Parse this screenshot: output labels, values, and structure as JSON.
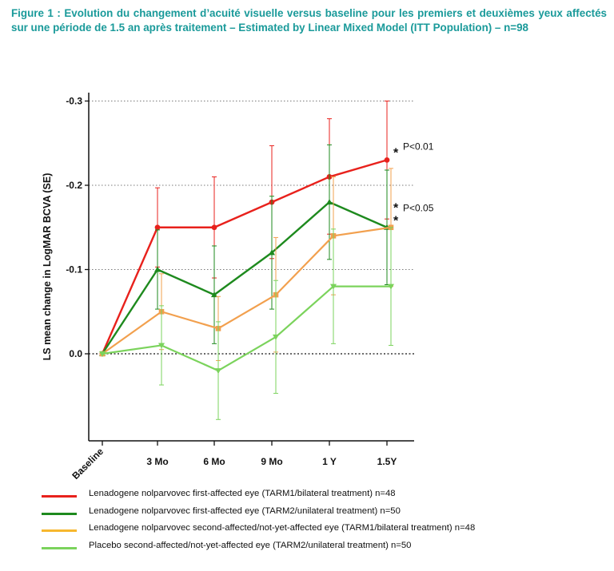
{
  "figure_title": "Figure 1 : Evolution du changement d’acuité visuelle versus baseline pour les premiers et deuxièmes yeux affectés sur une période de 1.5 an après traitement – Estimated by Linear Mixed Model (ITT Population) – n=98",
  "colors": {
    "title": "#1a9a9a",
    "red": "#e8211c",
    "dark_green": "#1e8a1e",
    "orange": "#f2a04e",
    "light_green": "#7bd35c"
  },
  "chart_data": {
    "type": "line",
    "title": "",
    "xlabel": "",
    "ylabel": "LS mean change in LogMAR BCVA (SE)",
    "categories": [
      "Baseline",
      "3 Mo",
      "6 Mo",
      "9 Mo",
      "1 Y",
      "1.5Y"
    ],
    "ylim": [
      0.1,
      -0.3
    ],
    "yaxis_inverted": true,
    "yticks": [
      "-0.3",
      "-0.2",
      "-0.1",
      "0.0"
    ],
    "grid": "horizontal dotted at tick values",
    "legend_position": "bottom",
    "series": [
      {
        "name": "Lenadogene nolparvovec first-affected eye (TARM1/bilateral treatment) n=48",
        "color": "#e8211c",
        "marker": "circle",
        "values": [
          0.0,
          -0.15,
          -0.15,
          -0.18,
          -0.21,
          -0.23
        ],
        "err_low": [
          0.0,
          -0.103,
          -0.09,
          -0.113,
          -0.142,
          -0.16
        ],
        "err_high": [
          0.0,
          -0.197,
          -0.21,
          -0.247,
          -0.279,
          -0.3
        ]
      },
      {
        "name": "Lenadogene nolparvovec first-affected eye (TARM2/unilateral treatment) n=50",
        "color": "#1e8a1e",
        "marker": "triangle-up",
        "values": [
          0.0,
          -0.1,
          -0.07,
          -0.12,
          -0.18,
          -0.15
        ],
        "err_low": [
          0.0,
          -0.053,
          -0.012,
          -0.053,
          -0.112,
          -0.082
        ],
        "err_high": [
          0.0,
          -0.147,
          -0.128,
          -0.187,
          -0.248,
          -0.218
        ]
      },
      {
        "name": "Lenadogene nolparvovec second-affected/not-yet-affected eye (TARM1/bilateral treatment) n=48",
        "color": "#f2a04e",
        "marker": "square",
        "values": [
          0.0,
          -0.05,
          -0.03,
          -0.07,
          -0.14,
          -0.15
        ],
        "err_low": [
          0.0,
          -0.005,
          0.008,
          -0.002,
          -0.07,
          -0.08
        ],
        "err_high": [
          0.0,
          -0.095,
          -0.068,
          -0.138,
          -0.21,
          -0.22
        ]
      },
      {
        "name": "Placebo second-affected/not-yet-affected eye (TARM2/unilateral treatment) n=50",
        "color": "#7bd35c",
        "marker": "triangle-down",
        "values": [
          0.0,
          -0.01,
          0.02,
          -0.02,
          -0.08,
          -0.08
        ],
        "err_low": [
          0.0,
          0.037,
          0.078,
          0.047,
          -0.012,
          -0.01
        ],
        "err_high": [
          0.0,
          -0.057,
          -0.038,
          -0.087,
          -0.148,
          -0.15
        ]
      }
    ],
    "annotations": [
      {
        "text": "P<0.01",
        "category": "1.5Y",
        "value": -0.243,
        "stars": "*"
      },
      {
        "text": "P<0.05",
        "category": "1.5Y",
        "value": -0.17,
        "stars": "*\n*"
      }
    ]
  }
}
